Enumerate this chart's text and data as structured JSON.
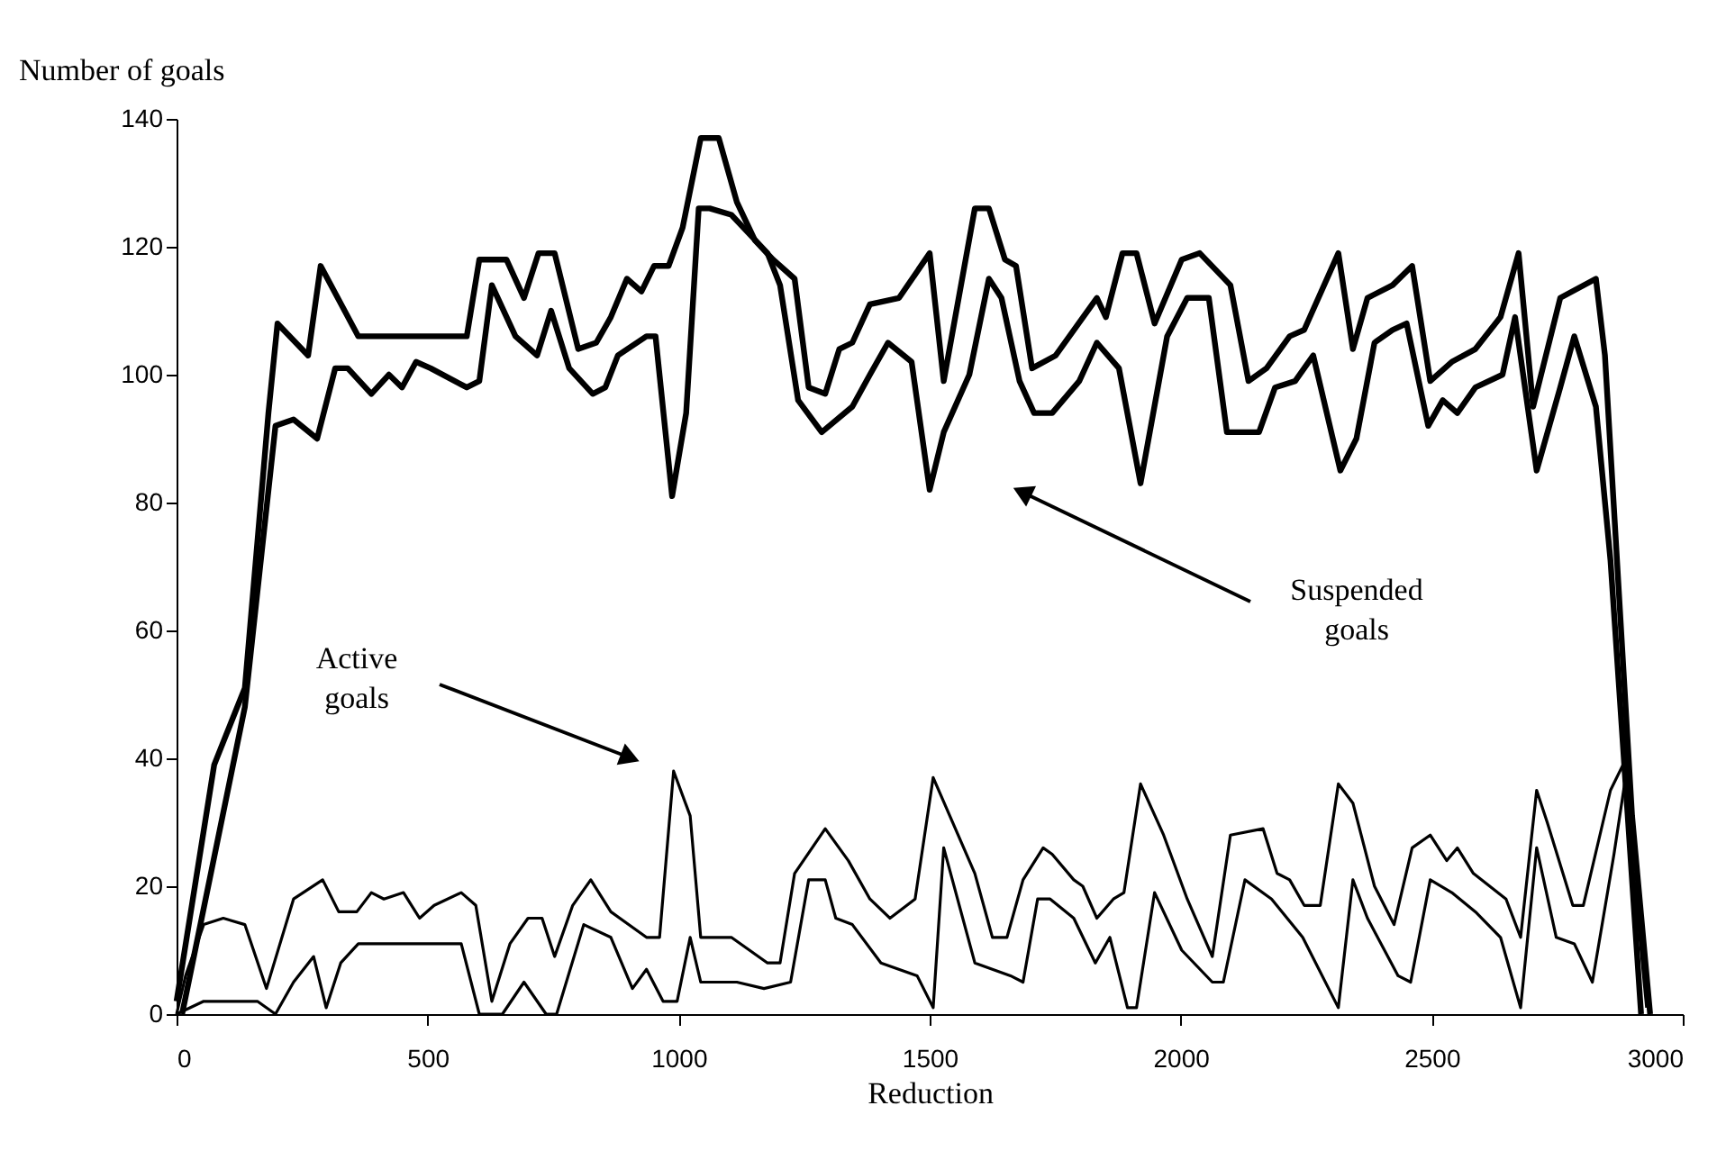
{
  "chart_data": {
    "type": "line",
    "xlabel": "Reduction",
    "ylabel": "Number of goals",
    "xlim": [
      0,
      3000
    ],
    "ylim": [
      0,
      140
    ],
    "xticks": [
      0,
      500,
      1000,
      1500,
      2000,
      2500,
      3000
    ],
    "yticks": [
      0,
      20,
      40,
      60,
      80,
      100,
      120,
      140
    ],
    "annotations": [
      "Active goals",
      "Suspended goals"
    ],
    "series": [
      {
        "color": "#000000",
        "x": [
          0,
          75,
          136,
          183,
          201,
          262,
          287,
          362,
          578,
          603,
          657,
          692,
          721,
          753,
          800,
          836,
          865,
          897,
          926,
          951,
          980,
          1008,
          1044,
          1080,
          1116,
          1152,
          1188,
          1231,
          1259,
          1292,
          1320,
          1346,
          1381,
          1439,
          1500,
          1528,
          1590,
          1618,
          1650,
          1672,
          1704,
          1751,
          1833,
          1851,
          1884,
          1912,
          1948,
          2002,
          2038,
          2099,
          2135,
          2171,
          2217,
          2246,
          2314,
          2343,
          2372,
          2422,
          2461,
          2497,
          2540,
          2587,
          2637,
          2673,
          2702,
          2756,
          2827,
          2845,
          2899,
          2935
        ],
        "values": [
          2,
          39,
          51,
          94,
          108,
          103,
          117,
          106,
          106,
          118,
          118,
          112,
          119,
          119,
          104,
          105,
          109,
          115,
          113,
          117,
          117,
          123,
          137,
          137,
          127,
          121,
          118,
          115,
          98,
          97,
          104,
          105,
          111,
          112,
          119,
          99,
          126,
          126,
          118,
          117,
          101,
          103,
          112,
          109,
          119,
          119,
          108,
          118,
          119,
          114,
          99,
          101,
          106,
          107,
          119,
          104,
          112,
          114,
          117,
          99,
          102,
          104,
          109,
          119,
          95,
          112,
          115,
          103,
          31,
          0
        ]
      },
      {
        "color": "#000000",
        "x": [
          11,
          136,
          197,
          233,
          280,
          316,
          341,
          388,
          423,
          449,
          477,
          506,
          578,
          603,
          628,
          675,
          718,
          746,
          782,
          829,
          854,
          879,
          936,
          954,
          987,
          1015,
          1040,
          1062,
          1105,
          1177,
          1202,
          1238,
          1285,
          1346,
          1381,
          1417,
          1464,
          1500,
          1528,
          1579,
          1618,
          1643,
          1679,
          1708,
          1744,
          1798,
          1833,
          1877,
          1920,
          1973,
          2013,
          2056,
          2092,
          2156,
          2188,
          2228,
          2264,
          2318,
          2350,
          2386,
          2422,
          2450,
          2493,
          2522,
          2551,
          2587,
          2641,
          2666,
          2709,
          2756,
          2784,
          2827,
          2856,
          2917
        ],
        "values": [
          0,
          48,
          92,
          93,
          90,
          101,
          101,
          97,
          100,
          98,
          102,
          101,
          98,
          99,
          114,
          106,
          103,
          110,
          101,
          97,
          98,
          103,
          106,
          106,
          81,
          94,
          126,
          126,
          125,
          119,
          114,
          96,
          91,
          95,
          100,
          105,
          102,
          82,
          91,
          100,
          115,
          112,
          99,
          94,
          94,
          99,
          105,
          101,
          83,
          106,
          112,
          112,
          91,
          91,
          98,
          99,
          103,
          85,
          90,
          105,
          107,
          108,
          92,
          96,
          94,
          98,
          100,
          109,
          85,
          98,
          106,
          95,
          71,
          0
        ]
      },
      {
        "color": "#000000",
        "x": [
          0,
          18,
          54,
          93,
          136,
          179,
          233,
          291,
          323,
          359,
          388,
          413,
          452,
          484,
          513,
          567,
          596,
          628,
          664,
          700,
          728,
          753,
          789,
          825,
          865,
          936,
          962,
          990,
          1023,
          1044,
          1105,
          1177,
          1202,
          1231,
          1292,
          1338,
          1381,
          1421,
          1471,
          1507,
          1590,
          1625,
          1654,
          1686,
          1726,
          1744,
          1787,
          1805,
          1833,
          1866,
          1887,
          1920,
          1966,
          2013,
          2063,
          2099,
          2164,
          2192,
          2217,
          2246,
          2278,
          2314,
          2343,
          2386,
          2425,
          2461,
          2497,
          2530,
          2551,
          2583,
          2648,
          2677,
          2709,
          2730,
          2781,
          2802,
          2856,
          2881,
          2928
        ],
        "values": [
          0,
          6,
          14,
          15,
          14,
          4,
          18,
          21,
          16,
          16,
          19,
          18,
          19,
          15,
          17,
          19,
          17,
          2,
          11,
          15,
          15,
          9,
          17,
          21,
          16,
          12,
          12,
          38,
          31,
          12,
          12,
          8,
          8,
          22,
          29,
          24,
          18,
          15,
          18,
          37,
          22,
          12,
          12,
          21,
          26,
          25,
          21,
          20,
          15,
          18,
          19,
          36,
          28,
          18,
          9,
          28,
          29,
          22,
          21,
          17,
          17,
          36,
          33,
          20,
          14,
          26,
          28,
          24,
          26,
          22,
          18,
          12,
          35,
          30,
          17,
          17,
          35,
          39,
          1
        ]
      },
      {
        "color": "#000000",
        "x": [
          0,
          54,
          161,
          197,
          233,
          273,
          298,
          327,
          362,
          567,
          603,
          649,
          692,
          736,
          757,
          811,
          865,
          908,
          936,
          969,
          997,
          1023,
          1044,
          1116,
          1170,
          1223,
          1259,
          1292,
          1313,
          1346,
          1403,
          1475,
          1507,
          1528,
          1590,
          1661,
          1686,
          1715,
          1740,
          1787,
          1830,
          1859,
          1894,
          1912,
          1948,
          2002,
          2063,
          2085,
          2128,
          2181,
          2243,
          2314,
          2343,
          2372,
          2433,
          2458,
          2497,
          2540,
          2587,
          2637,
          2677,
          2709,
          2748,
          2784,
          2820,
          2863,
          2888,
          2917
        ],
        "values": [
          0,
          2,
          2,
          0,
          5,
          9,
          1,
          8,
          11,
          11,
          0,
          0,
          5,
          0,
          0,
          14,
          12,
          4,
          7,
          2,
          2,
          12,
          5,
          5,
          4,
          5,
          21,
          21,
          15,
          14,
          8,
          6,
          1,
          26,
          8,
          6,
          5,
          18,
          18,
          15,
          8,
          12,
          1,
          1,
          19,
          10,
          5,
          5,
          21,
          18,
          12,
          1,
          21,
          15,
          6,
          5,
          21,
          19,
          16,
          12,
          1,
          26,
          12,
          11,
          5,
          25,
          38,
          1
        ]
      }
    ]
  }
}
